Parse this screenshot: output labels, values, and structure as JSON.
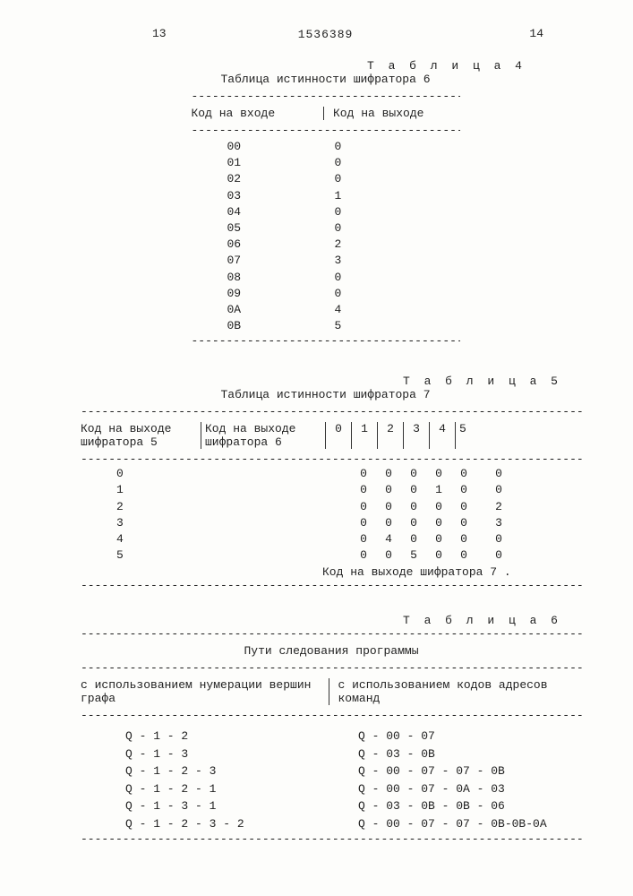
{
  "page_left_num": "13",
  "page_right_num": "14",
  "doc_number": "1536389",
  "tables": {
    "t4": {
      "label": "Т а б л и ц а 4",
      "caption": "Таблица истинности шифратора 6",
      "col1_header": "Код на входе",
      "col2_header": "Код на выходе",
      "rows": [
        {
          "in": "00",
          "out": "0"
        },
        {
          "in": "01",
          "out": "0"
        },
        {
          "in": "02",
          "out": "0"
        },
        {
          "in": "03",
          "out": "1"
        },
        {
          "in": "04",
          "out": "0"
        },
        {
          "in": "05",
          "out": "0"
        },
        {
          "in": "06",
          "out": "2"
        },
        {
          "in": "07",
          "out": "3"
        },
        {
          "in": "08",
          "out": "0"
        },
        {
          "in": "09",
          "out": "0"
        },
        {
          "in": "0A",
          "out": "4"
        },
        {
          "in": "0B",
          "out": "5"
        }
      ]
    },
    "t5": {
      "label": "Т а б л и ц а 5",
      "caption": "Таблица истинности шифратора 7",
      "col1_header": "Код на выходе шифратора 5",
      "col2_header": "Код на выходе шифратора 6",
      "num_cols": [
        "0",
        "1",
        "2",
        "3",
        "4",
        "5"
      ],
      "rows": [
        {
          "left": "0",
          "v": [
            "0",
            "0",
            "0",
            "0",
            "0",
            "0"
          ]
        },
        {
          "left": "1",
          "v": [
            "0",
            "0",
            "0",
            "1",
            "0",
            "0"
          ]
        },
        {
          "left": "2",
          "v": [
            "0",
            "0",
            "0",
            "0",
            "0",
            "2"
          ]
        },
        {
          "left": "3",
          "v": [
            "0",
            "0",
            "0",
            "0",
            "0",
            "3"
          ]
        },
        {
          "left": "4",
          "v": [
            "0",
            "4",
            "0",
            "0",
            "0",
            "0"
          ]
        },
        {
          "left": "5",
          "v": [
            "0",
            "0",
            "5",
            "0",
            "0",
            "0"
          ]
        }
      ],
      "footer": "Код на выходе шифратора 7 ."
    },
    "t6": {
      "label": "Т а б л и ц а 6",
      "title": "Пути следования программы",
      "col1_header": "с использованием нумерации вершин графа",
      "col2_header": "с использованием кодов адресов команд",
      "rows": [
        {
          "l": "Q - 1 - 2",
          "r": "Q - 00 - 07"
        },
        {
          "l": "Q - 1 - 3",
          "r": "Q - 03 - 0B"
        },
        {
          "l": "Q - 1 - 2 - 3",
          "r": "Q - 00 - 07 - 07 - 0B"
        },
        {
          "l": "Q - 1 - 2 - 1",
          "r": "Q - 00 - 07 - 0A - 03"
        },
        {
          "l": "Q - 1 - 3 - 1",
          "r": "Q - 03 - 0B - 0B - 06"
        },
        {
          "l": "Q - 1 - 2 - 3 - 2",
          "r": "Q - 00 - 07 - 07 - 0B-0B-0A"
        }
      ]
    }
  },
  "dash_short": "------------------------------------------",
  "dash_long": "--------------------------------------------------------------------------------",
  "colors": {
    "text": "#222222",
    "bg": "#fdfdfb"
  },
  "font": {
    "family": "Courier New",
    "size_pt": 10
  }
}
